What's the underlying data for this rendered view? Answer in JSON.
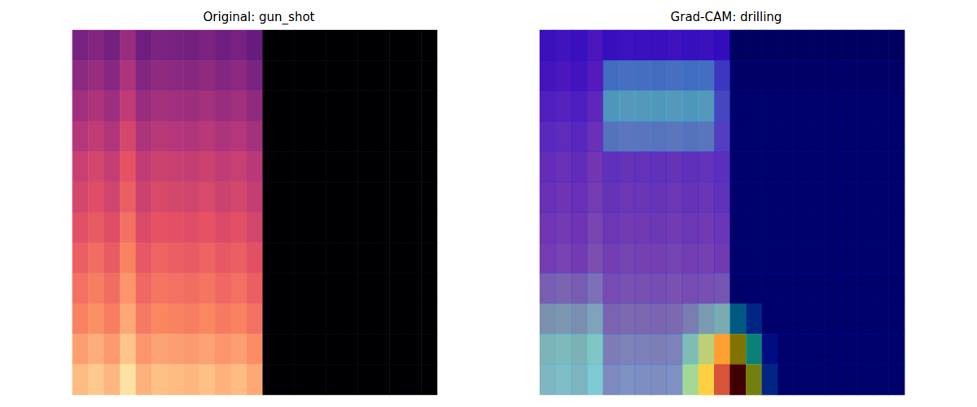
{
  "chart_data": [
    {
      "type": "heatmap",
      "title": "Original: gun_shot",
      "tick_labels": false,
      "zlim": [
        0,
        1
      ],
      "cells": [
        [
          0.35,
          0.38,
          0.34,
          0.43,
          0.33,
          0.36,
          0.35,
          0.34,
          0.36,
          0.33,
          0.35,
          0.31,
          0,
          0,
          0,
          0,
          0,
          0,
          0,
          0,
          0,
          0,
          0
        ],
        [
          0.4,
          0.43,
          0.39,
          0.48,
          0.38,
          0.41,
          0.4,
          0.39,
          0.41,
          0.38,
          0.4,
          0.36,
          0,
          0,
          0,
          0,
          0,
          0,
          0,
          0,
          0,
          0,
          0
        ],
        [
          0.45,
          0.48,
          0.44,
          0.53,
          0.43,
          0.46,
          0.45,
          0.44,
          0.46,
          0.43,
          0.45,
          0.41,
          0,
          0,
          0,
          0,
          0,
          0,
          0,
          0,
          0,
          0,
          0
        ],
        [
          0.5,
          0.53,
          0.49,
          0.58,
          0.48,
          0.51,
          0.5,
          0.49,
          0.51,
          0.48,
          0.5,
          0.46,
          0,
          0,
          0,
          0,
          0,
          0,
          0,
          0,
          0,
          0,
          0
        ],
        [
          0.55,
          0.58,
          0.54,
          0.63,
          0.53,
          0.56,
          0.55,
          0.54,
          0.56,
          0.53,
          0.55,
          0.51,
          0,
          0,
          0,
          0,
          0,
          0,
          0,
          0,
          0,
          0,
          0
        ],
        [
          0.58,
          0.61,
          0.57,
          0.66,
          0.56,
          0.59,
          0.58,
          0.57,
          0.59,
          0.56,
          0.58,
          0.54,
          0,
          0,
          0,
          0,
          0,
          0,
          0,
          0,
          0,
          0,
          0
        ],
        [
          0.62,
          0.65,
          0.61,
          0.7,
          0.6,
          0.63,
          0.62,
          0.61,
          0.63,
          0.6,
          0.62,
          0.58,
          0,
          0,
          0,
          0,
          0,
          0,
          0,
          0,
          0,
          0,
          0
        ],
        [
          0.66,
          0.69,
          0.65,
          0.74,
          0.64,
          0.67,
          0.66,
          0.65,
          0.67,
          0.64,
          0.66,
          0.62,
          0,
          0,
          0,
          0,
          0,
          0,
          0,
          0,
          0,
          0,
          0
        ],
        [
          0.7,
          0.73,
          0.69,
          0.78,
          0.68,
          0.71,
          0.7,
          0.69,
          0.71,
          0.68,
          0.7,
          0.66,
          0,
          0,
          0,
          0,
          0,
          0,
          0,
          0,
          0,
          0,
          0
        ],
        [
          0.74,
          0.77,
          0.73,
          0.82,
          0.72,
          0.75,
          0.74,
          0.73,
          0.75,
          0.72,
          0.74,
          0.7,
          0,
          0,
          0,
          0,
          0,
          0,
          0,
          0,
          0,
          0,
          0
        ],
        [
          0.8,
          0.83,
          0.79,
          0.88,
          0.78,
          0.81,
          0.8,
          0.79,
          0.81,
          0.78,
          0.8,
          0.76,
          0,
          0,
          0,
          0,
          0,
          0,
          0,
          0,
          0,
          0,
          0
        ],
        [
          0.86,
          0.89,
          0.85,
          0.94,
          0.84,
          0.87,
          0.86,
          0.85,
          0.87,
          0.84,
          0.86,
          0.82,
          0,
          0,
          0,
          0,
          0,
          0,
          0,
          0,
          0,
          0,
          0
        ]
      ]
    },
    {
      "type": "heatmap",
      "title": "Grad-CAM: drilling",
      "tick_labels": false,
      "zlim": [
        0,
        1
      ],
      "cells": [
        [
          0.35,
          0.38,
          0.34,
          0.43,
          0.33,
          0.36,
          0.35,
          0.34,
          0.36,
          0.33,
          0.35,
          0.31,
          0,
          0,
          0,
          0,
          0,
          0,
          0,
          0,
          0,
          0,
          0
        ],
        [
          0.4,
          0.43,
          0.39,
          0.48,
          0.38,
          0.41,
          0.4,
          0.39,
          0.41,
          0.38,
          0.4,
          0.36,
          0,
          0,
          0,
          0,
          0,
          0,
          0,
          0,
          0,
          0,
          0
        ],
        [
          0.45,
          0.48,
          0.44,
          0.53,
          0.43,
          0.46,
          0.45,
          0.44,
          0.46,
          0.43,
          0.45,
          0.41,
          0,
          0,
          0,
          0,
          0,
          0,
          0,
          0,
          0,
          0,
          0
        ],
        [
          0.5,
          0.53,
          0.49,
          0.58,
          0.48,
          0.51,
          0.5,
          0.49,
          0.51,
          0.48,
          0.5,
          0.46,
          0,
          0,
          0,
          0,
          0,
          0,
          0,
          0,
          0,
          0,
          0
        ],
        [
          0.55,
          0.58,
          0.54,
          0.63,
          0.53,
          0.56,
          0.55,
          0.54,
          0.56,
          0.53,
          0.55,
          0.51,
          0,
          0,
          0,
          0,
          0,
          0,
          0,
          0,
          0,
          0,
          0
        ],
        [
          0.58,
          0.61,
          0.57,
          0.66,
          0.56,
          0.59,
          0.58,
          0.57,
          0.59,
          0.56,
          0.58,
          0.54,
          0,
          0,
          0,
          0,
          0,
          0,
          0,
          0,
          0,
          0,
          0
        ],
        [
          0.62,
          0.65,
          0.61,
          0.7,
          0.6,
          0.63,
          0.62,
          0.61,
          0.63,
          0.6,
          0.62,
          0.58,
          0,
          0,
          0,
          0,
          0,
          0,
          0,
          0,
          0,
          0,
          0
        ],
        [
          0.66,
          0.69,
          0.65,
          0.74,
          0.64,
          0.67,
          0.66,
          0.65,
          0.67,
          0.64,
          0.66,
          0.62,
          0,
          0,
          0,
          0,
          0,
          0,
          0,
          0,
          0,
          0,
          0
        ],
        [
          0.7,
          0.73,
          0.69,
          0.78,
          0.68,
          0.71,
          0.7,
          0.69,
          0.71,
          0.68,
          0.7,
          0.66,
          0,
          0,
          0,
          0,
          0,
          0,
          0,
          0,
          0,
          0,
          0
        ],
        [
          0.74,
          0.77,
          0.73,
          0.82,
          0.72,
          0.75,
          0.74,
          0.73,
          0.75,
          0.72,
          0.74,
          0.7,
          0,
          0,
          0,
          0,
          0,
          0,
          0,
          0,
          0,
          0,
          0
        ],
        [
          0.8,
          0.83,
          0.79,
          0.88,
          0.78,
          0.81,
          0.8,
          0.79,
          0.81,
          0.78,
          0.8,
          0.76,
          0,
          0,
          0,
          0,
          0,
          0,
          0,
          0,
          0,
          0,
          0
        ],
        [
          0.86,
          0.89,
          0.85,
          0.94,
          0.84,
          0.87,
          0.86,
          0.85,
          0.87,
          0.84,
          0.86,
          0.82,
          0,
          0,
          0,
          0,
          0,
          0,
          0,
          0,
          0,
          0,
          0
        ]
      ],
      "cam": [
        [
          0.12,
          0.12,
          0.12,
          0.12,
          0.12,
          0.12,
          0.12,
          0.12,
          0.12,
          0.12,
          0.12,
          0.12,
          0.06,
          0.06,
          0.06,
          0.06,
          0.06,
          0.06,
          0.06,
          0.06,
          0.06,
          0.06,
          0.06
        ],
        [
          0.12,
          0.12,
          0.12,
          0.12,
          0.3,
          0.3,
          0.3,
          0.3,
          0.3,
          0.3,
          0.3,
          0.2,
          0.07,
          0.07,
          0.07,
          0.07,
          0.07,
          0.07,
          0.07,
          0.07,
          0.07,
          0.07,
          0.07
        ],
        [
          0.14,
          0.14,
          0.14,
          0.14,
          0.38,
          0.38,
          0.38,
          0.38,
          0.38,
          0.38,
          0.38,
          0.22,
          0.08,
          0.08,
          0.08,
          0.08,
          0.08,
          0.08,
          0.08,
          0.08,
          0.08,
          0.08,
          0.08
        ],
        [
          0.15,
          0.15,
          0.15,
          0.15,
          0.3,
          0.3,
          0.3,
          0.3,
          0.3,
          0.3,
          0.3,
          0.2,
          0.08,
          0.08,
          0.08,
          0.08,
          0.08,
          0.08,
          0.08,
          0.08,
          0.08,
          0.08,
          0.08
        ],
        [
          0.15,
          0.15,
          0.15,
          0.15,
          0.16,
          0.16,
          0.16,
          0.16,
          0.16,
          0.16,
          0.16,
          0.16,
          0.08,
          0.08,
          0.08,
          0.08,
          0.08,
          0.08,
          0.08,
          0.08,
          0.08,
          0.08,
          0.08
        ],
        [
          0.15,
          0.15,
          0.15,
          0.15,
          0.16,
          0.16,
          0.16,
          0.16,
          0.16,
          0.16,
          0.16,
          0.16,
          0.08,
          0.08,
          0.08,
          0.08,
          0.08,
          0.08,
          0.08,
          0.08,
          0.08,
          0.08,
          0.08
        ],
        [
          0.15,
          0.15,
          0.15,
          0.15,
          0.16,
          0.16,
          0.16,
          0.16,
          0.16,
          0.16,
          0.16,
          0.16,
          0.08,
          0.08,
          0.08,
          0.08,
          0.08,
          0.08,
          0.08,
          0.08,
          0.08,
          0.08,
          0.08
        ],
        [
          0.15,
          0.15,
          0.15,
          0.15,
          0.16,
          0.16,
          0.16,
          0.16,
          0.16,
          0.16,
          0.16,
          0.16,
          0.08,
          0.08,
          0.08,
          0.08,
          0.08,
          0.08,
          0.08,
          0.08,
          0.08,
          0.08,
          0.08
        ],
        [
          0.2,
          0.2,
          0.2,
          0.2,
          0.17,
          0.17,
          0.17,
          0.17,
          0.17,
          0.17,
          0.17,
          0.2,
          0.08,
          0.08,
          0.08,
          0.08,
          0.08,
          0.08,
          0.08,
          0.08,
          0.08,
          0.08,
          0.08
        ],
        [
          0.28,
          0.28,
          0.28,
          0.28,
          0.2,
          0.2,
          0.2,
          0.2,
          0.2,
          0.25,
          0.3,
          0.35,
          0.3,
          0.2,
          0.08,
          0.08,
          0.08,
          0.08,
          0.08,
          0.08,
          0.08,
          0.08,
          0.08
        ],
        [
          0.32,
          0.32,
          0.32,
          0.32,
          0.22,
          0.22,
          0.22,
          0.22,
          0.22,
          0.35,
          0.5,
          0.7,
          0.65,
          0.4,
          0.15,
          0.08,
          0.08,
          0.08,
          0.08,
          0.08,
          0.08,
          0.08,
          0.08
        ],
        [
          0.3,
          0.3,
          0.3,
          0.3,
          0.22,
          0.22,
          0.22,
          0.22,
          0.22,
          0.45,
          0.65,
          0.95,
          1.0,
          0.6,
          0.2,
          0.08,
          0.08,
          0.08,
          0.08,
          0.08,
          0.08,
          0.08,
          0.08
        ]
      ]
    }
  ]
}
